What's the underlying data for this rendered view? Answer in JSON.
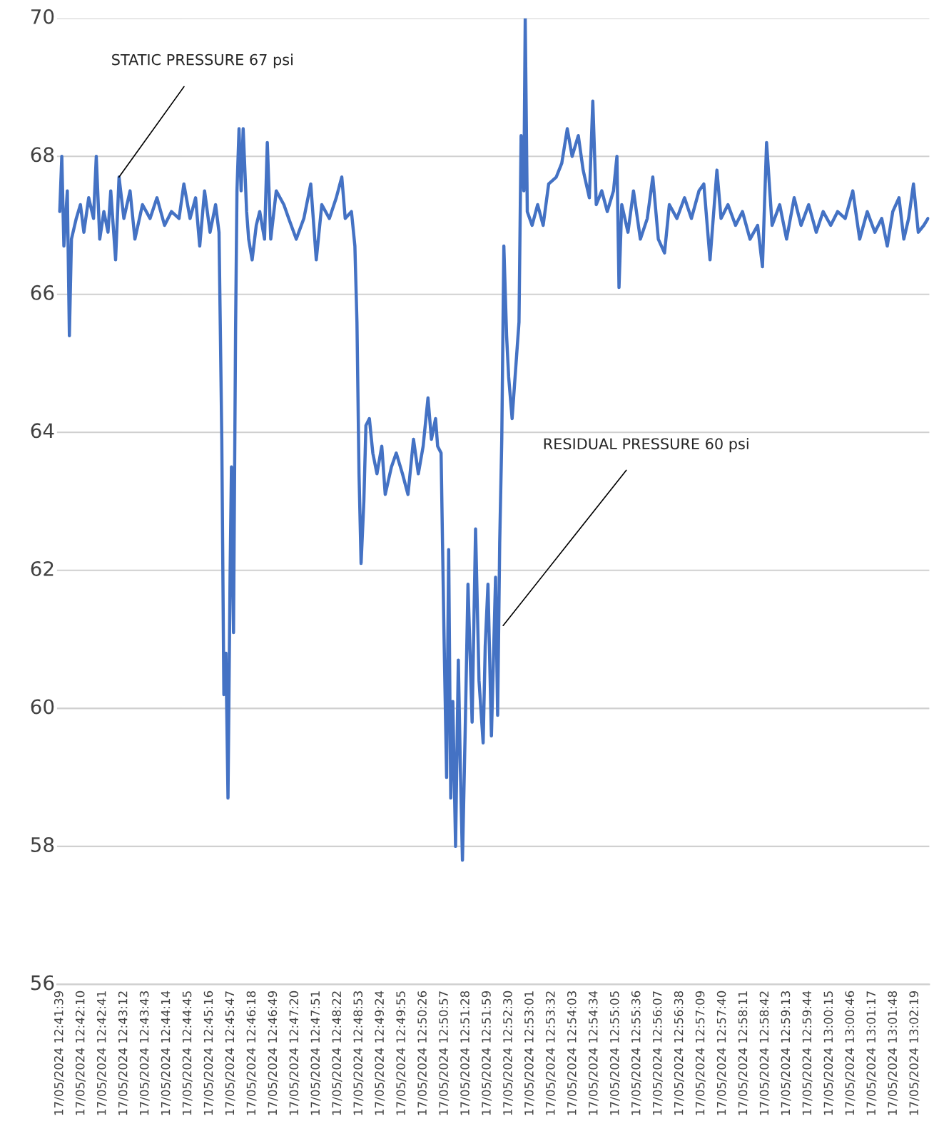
{
  "chart_data": {
    "type": "line",
    "ylim": [
      56,
      70
    ],
    "yticks": [
      56,
      58,
      60,
      62,
      64,
      66,
      68,
      70
    ],
    "grid": "y",
    "marker": "none",
    "line_style": "solid",
    "legend": false,
    "xlim": [
      "2024-05-17T12:41:35",
      "2024-05-17T13:02:40"
    ],
    "xticks": [
      {
        "value": "2024-05-17T12:41:39",
        "label": "17/05/2024 12:41:39"
      },
      {
        "value": "2024-05-17T12:42:10",
        "label": "17/05/2024 12:42:10"
      },
      {
        "value": "2024-05-17T12:42:41",
        "label": "17/05/2024 12:42:41"
      },
      {
        "value": "2024-05-17T12:43:12",
        "label": "17/05/2024 12:43:12"
      },
      {
        "value": "2024-05-17T12:43:43",
        "label": "17/05/2024 12:43:43"
      },
      {
        "value": "2024-05-17T12:44:14",
        "label": "17/05/2024 12:44:14"
      },
      {
        "value": "2024-05-17T12:44:45",
        "label": "17/05/2024 12:44:45"
      },
      {
        "value": "2024-05-17T12:45:16",
        "label": "17/05/2024 12:45:16"
      },
      {
        "value": "2024-05-17T12:45:47",
        "label": "17/05/2024 12:45:47"
      },
      {
        "value": "2024-05-17T12:46:18",
        "label": "17/05/2024 12:46:18"
      },
      {
        "value": "2024-05-17T12:46:49",
        "label": "17/05/2024 12:46:49"
      },
      {
        "value": "2024-05-17T12:47:20",
        "label": "17/05/2024 12:47:20"
      },
      {
        "value": "2024-05-17T12:47:51",
        "label": "17/05/2024 12:47:51"
      },
      {
        "value": "2024-05-17T12:48:22",
        "label": "17/05/2024 12:48:22"
      },
      {
        "value": "2024-05-17T12:48:53",
        "label": "17/05/2024 12:48:53"
      },
      {
        "value": "2024-05-17T12:49:24",
        "label": "17/05/2024 12:49:24"
      },
      {
        "value": "2024-05-17T12:49:55",
        "label": "17/05/2024 12:49:55"
      },
      {
        "value": "2024-05-17T12:50:26",
        "label": "17/05/2024 12:50:26"
      },
      {
        "value": "2024-05-17T12:50:57",
        "label": "17/05/2024 12:50:57"
      },
      {
        "value": "2024-05-17T12:51:28",
        "label": "17/05/2024 12:51:28"
      },
      {
        "value": "2024-05-17T12:51:59",
        "label": "17/05/2024 12:51:59"
      },
      {
        "value": "2024-05-17T12:52:30",
        "label": "17/05/2024 12:52:30"
      },
      {
        "value": "2024-05-17T12:53:01",
        "label": "17/05/2024 12:53:01"
      },
      {
        "value": "2024-05-17T12:53:32",
        "label": "17/05/2024 12:53:32"
      },
      {
        "value": "2024-05-17T12:54:03",
        "label": "17/05/2024 12:54:03"
      },
      {
        "value": "2024-05-17T12:54:34",
        "label": "17/05/2024 12:54:34"
      },
      {
        "value": "2024-05-17T12:55:05",
        "label": "17/05/2024 12:55:05"
      },
      {
        "value": "2024-05-17T12:55:36",
        "label": "17/05/2024 12:55:36"
      },
      {
        "value": "2024-05-17T12:56:07",
        "label": "17/05/2024 12:56:07"
      },
      {
        "value": "2024-05-17T12:56:38",
        "label": "17/05/2024 12:56:38"
      },
      {
        "value": "2024-05-17T12:57:09",
        "label": "17/05/2024 12:57:09"
      },
      {
        "value": "2024-05-17T12:57:40",
        "label": "17/05/2024 12:57:40"
      },
      {
        "value": "2024-05-17T12:58:11",
        "label": "17/05/2024 12:58:11"
      },
      {
        "value": "2024-05-17T12:58:42",
        "label": "17/05/2024 12:58:42"
      },
      {
        "value": "2024-05-17T12:59:13",
        "label": "17/05/2024 12:59:13"
      },
      {
        "value": "2024-05-17T12:59:44",
        "label": "17/05/2024 12:59:44"
      },
      {
        "value": "2024-05-17T13:00:15",
        "label": "17/05/2024 13:00:15"
      },
      {
        "value": "2024-05-17T13:00:46",
        "label": "17/05/2024 13:00:46"
      },
      {
        "value": "2024-05-17T13:01:17",
        "label": "17/05/2024 13:01:17"
      },
      {
        "value": "2024-05-17T13:01:48",
        "label": "17/05/2024 13:01:48"
      },
      {
        "value": "2024-05-17T13:02:19",
        "label": "17/05/2024 13:02:19"
      }
    ],
    "annotations": [
      {
        "text": "STATIC PRESSURE 67 psi",
        "x": "2024-05-17T12:43:05",
        "y": 67.7
      },
      {
        "text": "RESIDUAL PRESSURE 60 psi",
        "x": "2024-05-17T12:52:22",
        "y": 61.2
      }
    ],
    "series": [
      {
        "color": "#4472c4",
        "x": [
          "2024-05-17T12:41:39",
          "2024-05-17T12:41:42",
          "2024-05-17T12:41:45",
          "2024-05-17T12:41:50",
          "2024-05-17T12:41:53",
          "2024-05-17T12:41:56",
          "2024-05-17T12:42:03",
          "2024-05-17T12:42:09",
          "2024-05-17T12:42:14",
          "2024-05-17T12:42:21",
          "2024-05-17T12:42:28",
          "2024-05-17T12:42:32",
          "2024-05-17T12:42:37",
          "2024-05-17T12:42:43",
          "2024-05-17T12:42:49",
          "2024-05-17T12:42:53",
          "2024-05-17T12:43:00",
          "2024-05-17T12:43:05",
          "2024-05-17T12:43:12",
          "2024-05-17T12:43:21",
          "2024-05-17T12:43:28",
          "2024-05-17T12:43:39",
          "2024-05-17T12:43:50",
          "2024-05-17T12:44:00",
          "2024-05-17T12:44:11",
          "2024-05-17T12:44:21",
          "2024-05-17T12:44:32",
          "2024-05-17T12:44:39",
          "2024-05-17T12:44:48",
          "2024-05-17T12:44:56",
          "2024-05-17T12:45:02",
          "2024-05-17T12:45:09",
          "2024-05-17T12:45:17",
          "2024-05-17T12:45:25",
          "2024-05-17T12:45:30",
          "2024-05-17T12:45:34",
          "2024-05-17T12:45:37",
          "2024-05-17T12:45:40",
          "2024-05-17T12:45:43",
          "2024-05-17T12:45:46",
          "2024-05-17T12:45:48",
          "2024-05-17T12:45:51",
          "2024-05-17T12:45:54",
          "2024-05-17T12:45:56",
          "2024-05-17T12:45:59",
          "2024-05-17T12:46:02",
          "2024-05-17T12:46:05",
          "2024-05-17T12:46:10",
          "2024-05-17T12:46:13",
          "2024-05-17T12:46:18",
          "2024-05-17T12:46:24",
          "2024-05-17T12:46:29",
          "2024-05-17T12:46:36",
          "2024-05-17T12:46:40",
          "2024-05-17T12:46:45",
          "2024-05-17T12:46:53",
          "2024-05-17T12:47:04",
          "2024-05-17T12:47:11",
          "2024-05-17T12:47:22",
          "2024-05-17T12:47:33",
          "2024-05-17T12:47:43",
          "2024-05-17T12:47:51",
          "2024-05-17T12:47:59",
          "2024-05-17T12:48:10",
          "2024-05-17T12:48:20",
          "2024-05-17T12:48:28",
          "2024-05-17T12:48:33",
          "2024-05-17T12:48:42",
          "2024-05-17T12:48:47",
          "2024-05-17T12:48:50",
          "2024-05-17T12:48:53",
          "2024-05-17T12:48:56",
          "2024-05-17T12:49:00",
          "2024-05-17T12:49:03",
          "2024-05-17T12:49:08",
          "2024-05-17T12:49:13",
          "2024-05-17T12:49:19",
          "2024-05-17T12:49:26",
          "2024-05-17T12:49:31",
          "2024-05-17T12:49:40",
          "2024-05-17T12:49:47",
          "2024-05-17T12:49:56",
          "2024-05-17T12:50:04",
          "2024-05-17T12:50:12",
          "2024-05-17T12:50:19",
          "2024-05-17T12:50:26",
          "2024-05-17T12:50:33",
          "2024-05-17T12:50:38",
          "2024-05-17T12:50:44",
          "2024-05-17T12:50:47",
          "2024-05-17T12:50:52",
          "2024-05-17T12:50:56",
          "2024-05-17T12:51:00",
          "2024-05-17T12:51:03",
          "2024-05-17T12:51:06",
          "2024-05-17T12:51:09",
          "2024-05-17T12:51:13",
          "2024-05-17T12:51:17",
          "2024-05-17T12:51:20",
          "2024-05-17T12:51:23",
          "2024-05-17T12:51:27",
          "2024-05-17T12:51:31",
          "2024-05-17T12:51:37",
          "2024-05-17T12:51:42",
          "2024-05-17T12:51:47",
          "2024-05-17T12:51:53",
          "2024-05-17T12:51:56",
          "2024-05-17T12:52:00",
          "2024-05-17T12:52:05",
          "2024-05-17T12:52:11",
          "2024-05-17T12:52:14",
          "2024-05-17T12:52:17",
          "2024-05-17T12:52:20",
          "2024-05-17T12:52:23",
          "2024-05-17T12:52:27",
          "2024-05-17T12:52:30",
          "2024-05-17T12:52:35",
          "2024-05-17T12:52:40",
          "2024-05-17T12:52:45",
          "2024-05-17T12:52:48",
          "2024-05-17T12:52:52",
          "2024-05-17T12:52:54",
          "2024-05-17T12:52:57",
          "2024-05-17T12:53:04",
          "2024-05-17T12:53:12",
          "2024-05-17T12:53:20",
          "2024-05-17T12:53:28",
          "2024-05-17T12:53:39",
          "2024-05-17T12:53:47",
          "2024-05-17T12:53:55",
          "2024-05-17T12:54:02",
          "2024-05-17T12:54:11",
          "2024-05-17T12:54:18",
          "2024-05-17T12:54:27",
          "2024-05-17T12:54:32",
          "2024-05-17T12:54:37",
          "2024-05-17T12:54:45",
          "2024-05-17T12:54:53",
          "2024-05-17T12:55:02",
          "2024-05-17T12:55:07",
          "2024-05-17T12:55:10",
          "2024-05-17T12:55:14",
          "2024-05-17T12:55:23",
          "2024-05-17T12:55:31",
          "2024-05-17T12:55:41",
          "2024-05-17T12:55:51",
          "2024-05-17T12:55:59",
          "2024-05-17T12:56:07",
          "2024-05-17T12:56:16",
          "2024-05-17T12:56:23",
          "2024-05-17T12:56:34",
          "2024-05-17T12:56:45",
          "2024-05-17T12:56:55",
          "2024-05-17T12:57:06",
          "2024-05-17T12:57:13",
          "2024-05-17T12:57:22",
          "2024-05-17T12:57:32",
          "2024-05-17T12:57:38",
          "2024-05-17T12:57:48",
          "2024-05-17T12:57:59",
          "2024-05-17T12:58:09",
          "2024-05-17T12:58:20",
          "2024-05-17T12:58:31",
          "2024-05-17T12:58:38",
          "2024-05-17T12:58:44",
          "2024-05-17T12:58:52",
          "2024-05-17T12:59:03",
          "2024-05-17T12:59:13",
          "2024-05-17T12:59:24",
          "2024-05-17T12:59:34",
          "2024-05-17T12:59:45",
          "2024-05-17T12:59:56",
          "2024-05-17T13:00:06",
          "2024-05-17T13:00:17",
          "2024-05-17T13:00:27",
          "2024-05-17T13:00:38",
          "2024-05-17T13:00:49",
          "2024-05-17T13:00:59",
          "2024-05-17T13:01:10",
          "2024-05-17T13:01:21",
          "2024-05-17T13:01:31",
          "2024-05-17T13:01:39",
          "2024-05-17T13:01:47",
          "2024-05-17T13:01:56",
          "2024-05-17T13:02:03",
          "2024-05-17T13:02:10",
          "2024-05-17T13:02:17",
          "2024-05-17T13:02:24",
          "2024-05-17T13:02:32",
          "2024-05-17T13:02:38"
        ],
        "values": [
          67.2,
          68.0,
          66.7,
          67.5,
          65.4,
          66.8,
          67.1,
          67.3,
          66.9,
          67.4,
          67.1,
          68.0,
          66.8,
          67.2,
          66.9,
          67.5,
          66.5,
          67.7,
          67.1,
          67.5,
          66.8,
          67.3,
          67.1,
          67.4,
          67.0,
          67.2,
          67.1,
          67.6,
          67.1,
          67.4,
          66.7,
          67.5,
          66.9,
          67.3,
          66.9,
          63.9,
          60.2,
          60.8,
          58.7,
          61.9,
          63.5,
          61.1,
          65.5,
          67.5,
          68.4,
          67.5,
          68.4,
          67.2,
          66.8,
          66.5,
          67.0,
          67.2,
          66.8,
          68.2,
          66.8,
          67.5,
          67.3,
          67.1,
          66.8,
          67.1,
          67.6,
          66.5,
          67.3,
          67.1,
          67.4,
          67.7,
          67.1,
          67.2,
          66.7,
          65.6,
          63.4,
          62.1,
          63.0,
          64.1,
          64.2,
          63.7,
          63.4,
          63.8,
          63.1,
          63.5,
          63.7,
          63.4,
          63.1,
          63.9,
          63.4,
          63.8,
          64.5,
          63.9,
          64.2,
          63.8,
          63.7,
          61.2,
          59.0,
          62.3,
          58.7,
          60.1,
          58.0,
          60.7,
          59.1,
          57.8,
          59.7,
          61.8,
          59.8,
          62.6,
          60.4,
          59.5,
          60.9,
          61.8,
          59.6,
          61.9,
          59.9,
          62.4,
          63.9,
          66.7,
          65.4,
          64.8,
          64.2,
          64.9,
          65.6,
          68.3,
          67.5,
          70.0,
          67.2,
          67.0,
          67.3,
          67.0,
          67.6,
          67.7,
          67.9,
          68.4,
          68.0,
          68.3,
          67.8,
          67.4,
          68.8,
          67.3,
          67.5,
          67.2,
          67.5,
          68.0,
          66.1,
          67.3,
          66.9,
          67.5,
          66.8,
          67.1,
          67.7,
          66.8,
          66.6,
          67.3,
          67.1,
          67.4,
          67.1,
          67.5,
          67.6,
          66.5,
          67.8,
          67.1,
          67.3,
          67.0,
          67.2,
          66.8,
          67.0,
          66.4,
          68.2,
          67.0,
          67.3,
          66.8,
          67.4,
          67.0,
          67.3,
          66.9,
          67.2,
          67.0,
          67.2,
          67.1,
          67.5,
          66.8,
          67.2,
          66.9,
          67.1,
          66.7,
          67.2,
          67.4,
          66.8,
          67.1,
          67.6,
          66.9,
          67.0,
          67.1
        ]
      }
    ]
  }
}
